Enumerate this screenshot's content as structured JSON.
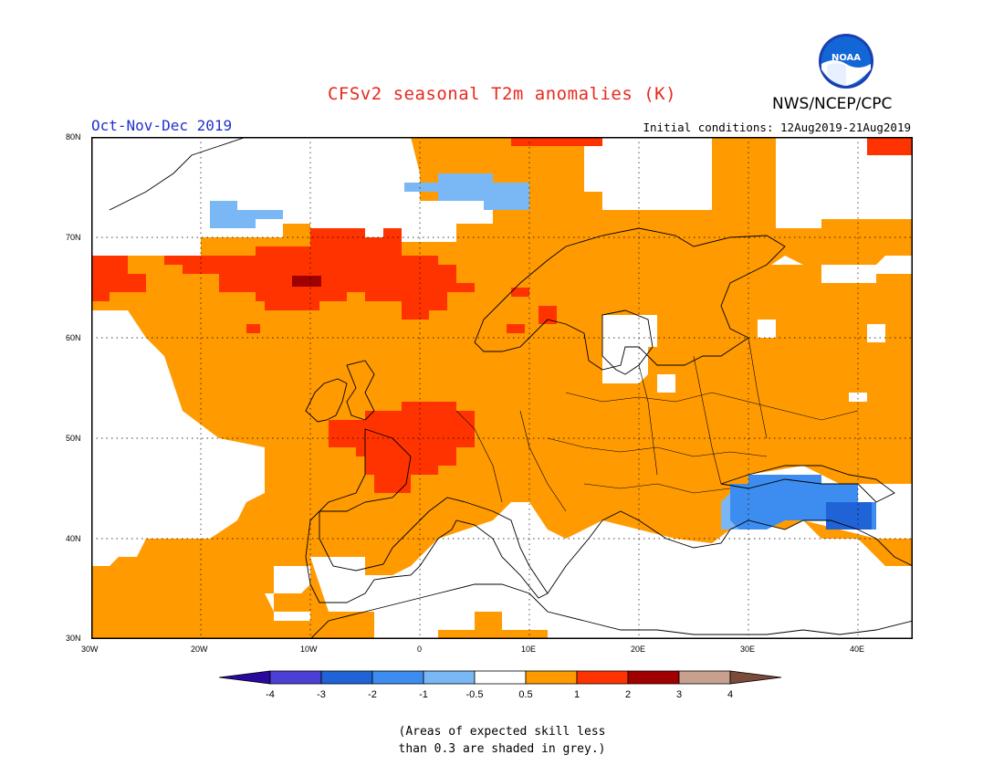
{
  "header": {
    "title": "CFSv2 seasonal T2m anomalies (K)",
    "agency": "NWS/NCEP/CPC",
    "logo_text": "NOAA",
    "season": "Oct-Nov-Dec 2019",
    "initial_conditions": "Initial conditions: 12Aug2019-21Aug2019"
  },
  "map": {
    "lon_range": [
      -30,
      45
    ],
    "lat_range": [
      30,
      80
    ],
    "lat_ticks": [
      "80N",
      "70N",
      "60N",
      "50N",
      "40N",
      "30N"
    ],
    "lon_ticks": [
      "30W",
      "20W",
      "10W",
      "0",
      "10E",
      "20E",
      "30E",
      "40E"
    ]
  },
  "colorbar": {
    "labels": [
      "-4",
      "-3",
      "-2",
      "-1",
      "-0.5",
      "0.5",
      "1",
      "2",
      "3",
      "4"
    ],
    "colors": [
      "#2a0a9c",
      "#4b3fd6",
      "#1f63d6",
      "#3d8df0",
      "#7ab8f5",
      "#ffffff",
      "#ff9a00",
      "#ff3300",
      "#a00000",
      "#c8a090",
      "#7a4a3a"
    ]
  },
  "note": {
    "line1": "(Areas of expected skill less",
    "line2": "than 0.3 are shaded in grey.)"
  }
}
